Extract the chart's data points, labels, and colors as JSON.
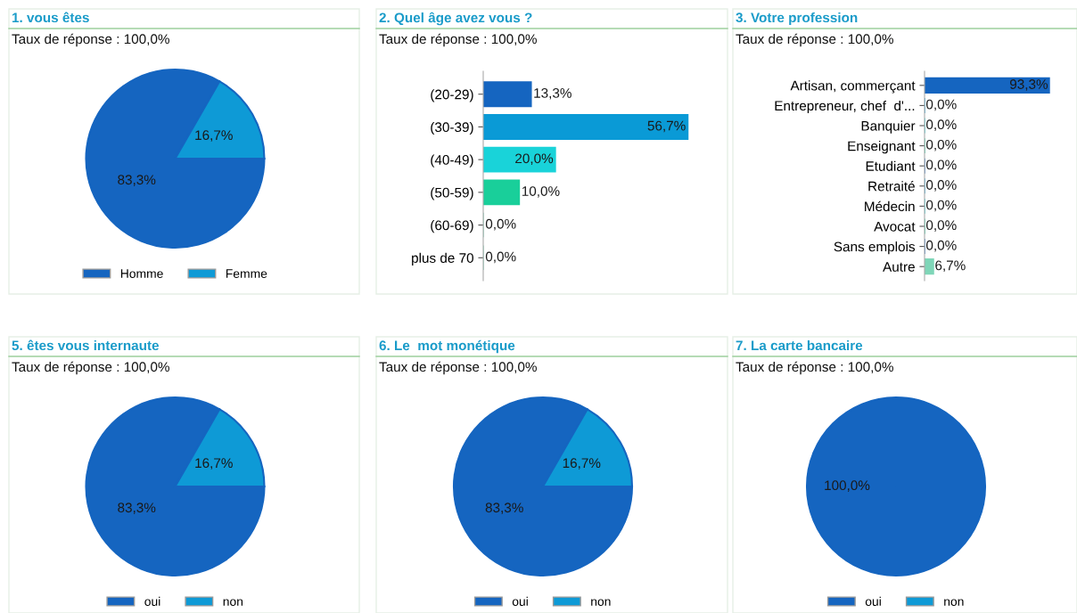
{
  "chart_data": [
    {
      "type": "pie",
      "title": "1. vous êtes",
      "subtitle": "Taux de réponse : 100,0%",
      "categories": [
        "Homme",
        "Femme"
      ],
      "values": [
        83.3,
        16.7
      ],
      "colors": [
        "#1565c0",
        "#0e9ad6"
      ],
      "value_labels": [
        "83,3%",
        "16,7%"
      ],
      "legend": "bottom"
    },
    {
      "type": "bar",
      "orientation": "horizontal",
      "title": "2. Quel âge avez vous ?",
      "subtitle": "Taux de réponse : 100,0%",
      "categories": [
        "(20-29)",
        "(30-39)",
        "(40-49)",
        "(50-59)",
        "(60-69)",
        "plus de 70"
      ],
      "values": [
        13.3,
        56.7,
        20.0,
        10.0,
        0.0,
        0.0
      ],
      "colors": [
        "#1565c0",
        "#0a9ad6",
        "#19d3d9",
        "#19cf9a",
        "#7fd6b8",
        "#7fd6b8"
      ],
      "value_labels": [
        "13,3%",
        "56,7%",
        "20,0%",
        "10,0%",
        "0,0%",
        "0,0%"
      ],
      "tick_labels": "y"
    },
    {
      "type": "bar",
      "orientation": "horizontal",
      "title": "3. Votre profession",
      "subtitle": "Taux de réponse : 100,0%",
      "categories": [
        "Artisan, commerçant",
        "Entrepreneur, chef  d'...",
        "Banquier",
        "Enseignant",
        "Etudiant",
        "Retraité",
        "Médecin",
        "Avocat",
        "Sans emplois",
        "Autre"
      ],
      "values": [
        93.3,
        0.0,
        0.0,
        0.0,
        0.0,
        0.0,
        0.0,
        0.0,
        0.0,
        6.7
      ],
      "colors": [
        "#1565c0",
        "#0a9ad6",
        "#19d3d9",
        "#19cf9a",
        "#1565c0",
        "#0a9ad6",
        "#19d3d9",
        "#19cf9a",
        "#1565c0",
        "#7fd6b8"
      ],
      "value_labels": [
        "93,3%",
        "0,0%",
        "0,0%",
        "0,0%",
        "0,0%",
        "0,0%",
        "0,0%",
        "0,0%",
        "0,0%",
        "6,7%"
      ],
      "tick_labels": "y"
    },
    {
      "type": "pie",
      "title": "5. êtes vous internaute",
      "subtitle": "Taux de réponse : 100,0%",
      "categories": [
        "oui",
        "non"
      ],
      "values": [
        83.3,
        16.7
      ],
      "colors": [
        "#1565c0",
        "#0e9ad6"
      ],
      "value_labels": [
        "83,3%",
        "16,7%"
      ],
      "legend": "bottom"
    },
    {
      "type": "pie",
      "title": "6. Le  mot monétique",
      "subtitle": "Taux de réponse : 100,0%",
      "categories": [
        "oui",
        "non"
      ],
      "values": [
        83.3,
        16.7
      ],
      "colors": [
        "#1565c0",
        "#0e9ad6"
      ],
      "value_labels": [
        "83,3%",
        "16,7%"
      ],
      "legend": "bottom"
    },
    {
      "type": "pie",
      "title": "7. La carte bancaire",
      "subtitle": "Taux de réponse : 100,0%",
      "categories": [
        "oui",
        "non"
      ],
      "values": [
        100.0,
        0.0
      ],
      "colors": [
        "#1565c0",
        "#0e9ad6"
      ],
      "value_labels": [
        "100,0%",
        null
      ],
      "legend": "bottom"
    }
  ]
}
